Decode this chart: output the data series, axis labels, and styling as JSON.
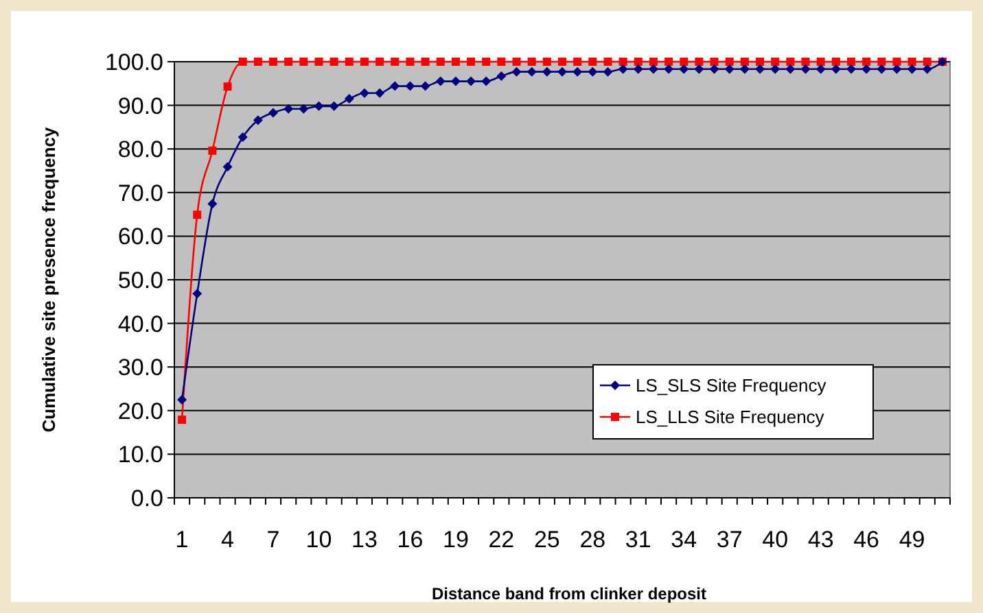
{
  "chart_data": {
    "type": "line",
    "xlabel": "Distance band from clinker deposit",
    "ylabel": "Cumulative site presence frequency",
    "categories": [
      "1",
      null,
      null,
      "4",
      null,
      null,
      "7",
      null,
      null,
      "10",
      null,
      null,
      "13",
      null,
      null,
      "16",
      null,
      null,
      "19",
      null,
      null,
      "22",
      null,
      null,
      "25",
      null,
      null,
      "28",
      null,
      null,
      "31",
      null,
      null,
      "34",
      null,
      null,
      "37",
      null,
      null,
      "40",
      null,
      null,
      "43",
      null,
      null,
      "46",
      null,
      null,
      "49",
      null,
      null
    ],
    "ylim": [
      0,
      100
    ],
    "yticks": [
      {
        "value": 0,
        "label": "0.0"
      },
      {
        "value": 10,
        "label": "10.0"
      },
      {
        "value": 20,
        "label": "20.0"
      },
      {
        "value": 30,
        "label": "30.0"
      },
      {
        "value": 40,
        "label": "40.0"
      },
      {
        "value": 50,
        "label": "50.0"
      },
      {
        "value": 60,
        "label": "60.0"
      },
      {
        "value": 70,
        "label": "70.0"
      },
      {
        "value": 80,
        "label": "80.0"
      },
      {
        "value": 90,
        "label": "90.0"
      },
      {
        "value": 100,
        "label": "100.0"
      }
    ],
    "grid": "y",
    "legend": "bottom right",
    "series": [
      {
        "name": "LS_SLS Site Frequency",
        "color": "#000080",
        "marker": "diamond",
        "values": [
          22.5,
          46.8,
          67.4,
          75.9,
          82.7,
          86.6,
          88.3,
          89.2,
          89.2,
          89.8,
          89.8,
          91.5,
          92.8,
          92.8,
          94.4,
          94.4,
          94.4,
          95.5,
          95.5,
          95.5,
          95.5,
          96.7,
          97.7,
          97.7,
          97.7,
          97.7,
          97.7,
          97.7,
          97.7,
          98.3,
          98.3,
          98.3,
          98.3,
          98.3,
          98.3,
          98.3,
          98.3,
          98.3,
          98.3,
          98.3,
          98.3,
          98.3,
          98.3,
          98.3,
          98.3,
          98.3,
          98.3,
          98.3,
          98.3,
          98.3,
          100
        ]
      },
      {
        "name": "LS_LLS Site Frequency",
        "color": "#ff0000",
        "marker": "square",
        "values": [
          17.9,
          64.9,
          79.6,
          94.3,
          100,
          100,
          100,
          100,
          100,
          100,
          100,
          100,
          100,
          100,
          100,
          100,
          100,
          100,
          100,
          100,
          100,
          100,
          100,
          100,
          100,
          100,
          100,
          100,
          100,
          100,
          100,
          100,
          100,
          100,
          100,
          100,
          100,
          100,
          100,
          100,
          100,
          100,
          100,
          100,
          100,
          100,
          100,
          100,
          100,
          100,
          100
        ]
      }
    ]
  }
}
